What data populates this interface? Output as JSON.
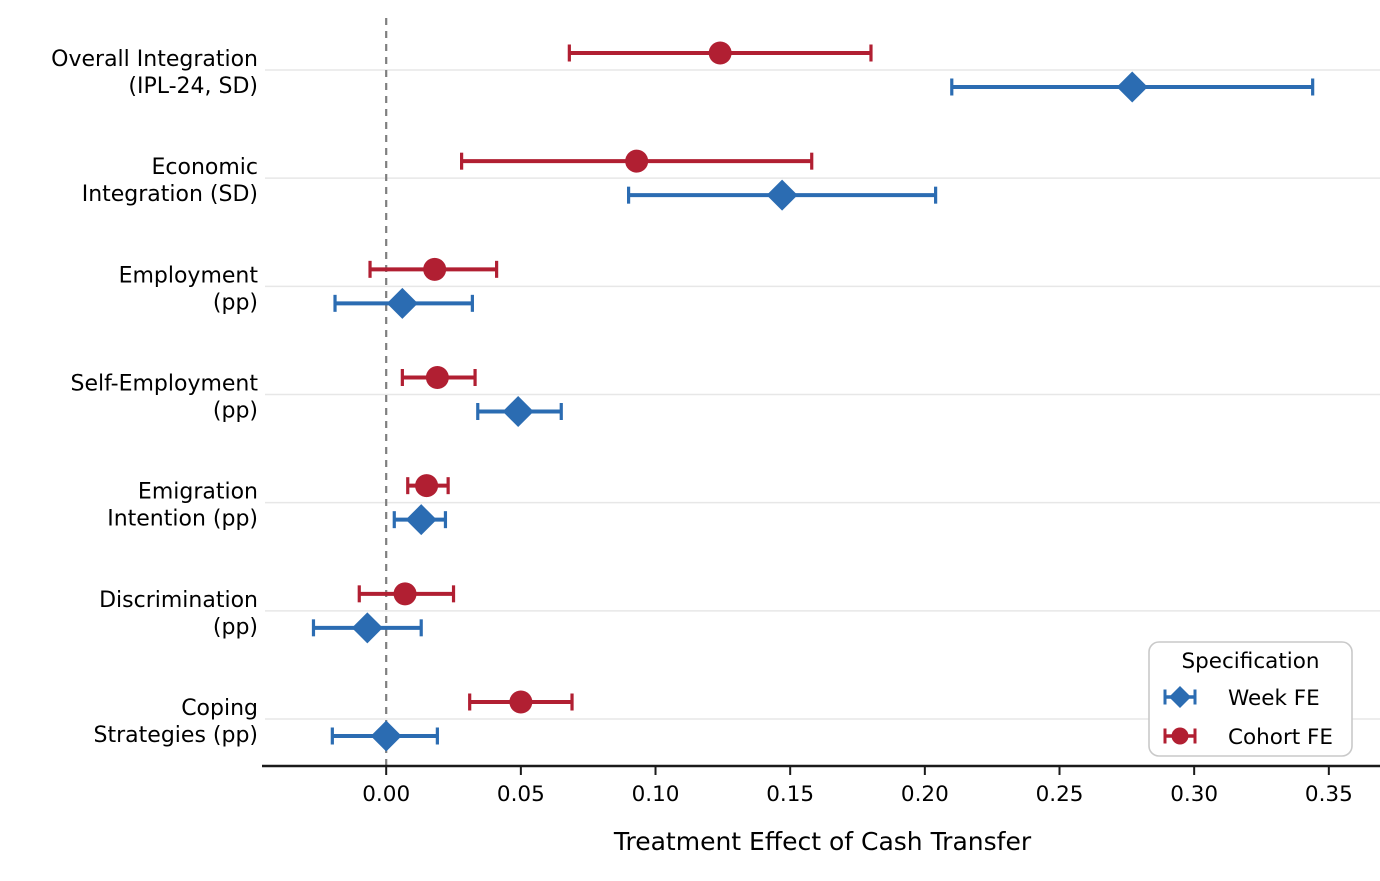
{
  "chart_data": {
    "type": "errorbar_dot_plot",
    "title": "",
    "xlabel": "Treatment Effect of Cash Transfer",
    "xlim": [
      -0.045,
      0.369
    ],
    "xticks": [
      0.0,
      0.05,
      0.1,
      0.15,
      0.2,
      0.25,
      0.3,
      0.35
    ],
    "xtick_labels": [
      "0.00",
      "0.05",
      "0.10",
      "0.15",
      "0.20",
      "0.25",
      "0.30",
      "0.35"
    ],
    "grid": "horizontal",
    "zero_reference_line": 0.0,
    "categories": [
      {
        "lines": [
          "Overall Integration",
          "(IPL-24, SD)"
        ]
      },
      {
        "lines": [
          "Economic",
          "Integration (SD)"
        ]
      },
      {
        "lines": [
          "Employment",
          "(pp)"
        ]
      },
      {
        "lines": [
          "Self-Employment",
          "(pp)"
        ]
      },
      {
        "lines": [
          "Emigration",
          "Intention (pp)"
        ]
      },
      {
        "lines": [
          "Discrimination",
          "(pp)"
        ]
      },
      {
        "lines": [
          "Coping",
          "Strategies (pp)"
        ]
      }
    ],
    "series": [
      {
        "name": "Week FE",
        "marker": "diamond",
        "color": "#2b6cb2",
        "row_offset": "below",
        "points": [
          {
            "value": 0.277,
            "ci_low": 0.21,
            "ci_high": 0.344
          },
          {
            "value": 0.147,
            "ci_low": 0.09,
            "ci_high": 0.204
          },
          {
            "value": 0.006,
            "ci_low": -0.019,
            "ci_high": 0.032
          },
          {
            "value": 0.049,
            "ci_low": 0.034,
            "ci_high": 0.065
          },
          {
            "value": 0.013,
            "ci_low": 0.003,
            "ci_high": 0.022
          },
          {
            "value": -0.007,
            "ci_low": -0.027,
            "ci_high": 0.013
          },
          {
            "value": 0.0,
            "ci_low": -0.02,
            "ci_high": 0.019
          }
        ]
      },
      {
        "name": "Cohort FE",
        "marker": "circle",
        "color": "#b11f32",
        "row_offset": "above",
        "points": [
          {
            "value": 0.124,
            "ci_low": 0.068,
            "ci_high": 0.18
          },
          {
            "value": 0.093,
            "ci_low": 0.028,
            "ci_high": 0.158
          },
          {
            "value": 0.018,
            "ci_low": -0.006,
            "ci_high": 0.041
          },
          {
            "value": 0.019,
            "ci_low": 0.006,
            "ci_high": 0.033
          },
          {
            "value": 0.015,
            "ci_low": 0.008,
            "ci_high": 0.023
          },
          {
            "value": 0.007,
            "ci_low": -0.01,
            "ci_high": 0.025
          },
          {
            "value": 0.05,
            "ci_low": 0.031,
            "ci_high": 0.069
          }
        ]
      }
    ],
    "legend": {
      "title": "Specification",
      "position": "lower right",
      "entries": [
        {
          "label": "Week FE",
          "marker": "diamond",
          "color": "#2b6cb2"
        },
        {
          "label": "Cohort FE",
          "marker": "circle",
          "color": "#b11f32"
        }
      ]
    },
    "style_colors": {
      "gridline": "#e7e7e7",
      "zero_line": "#7f7f7f",
      "axis_spine": "#1a1a1a",
      "legend_border": "#c9c9c9",
      "legend_background": "#ffffff"
    }
  }
}
